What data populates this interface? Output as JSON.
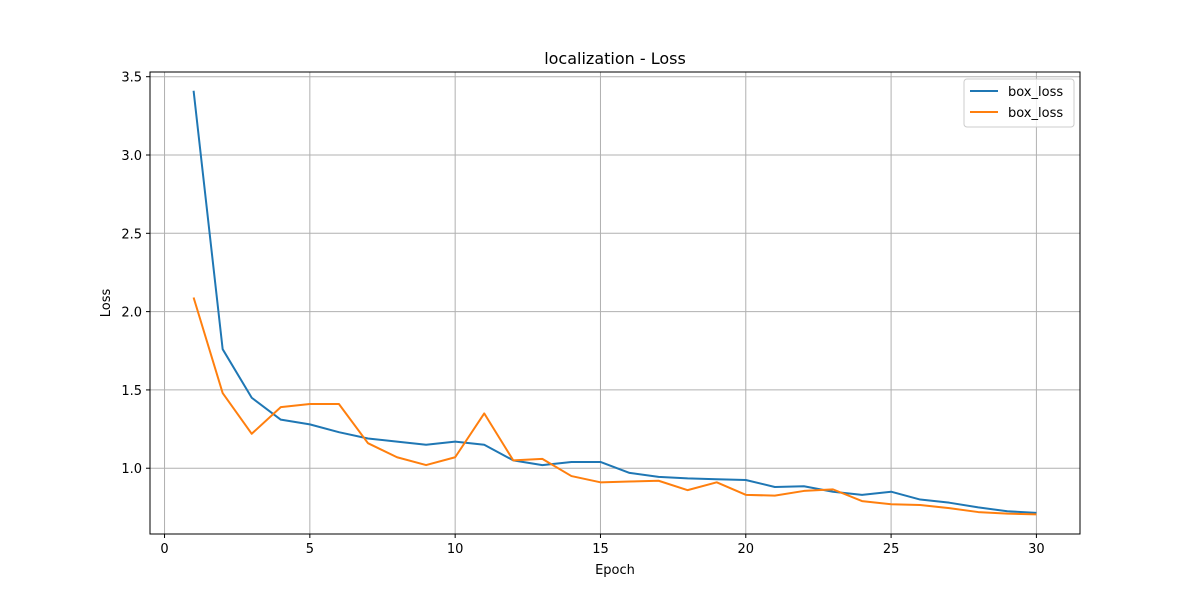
{
  "chart_data": {
    "type": "line",
    "title": "localization - Loss",
    "xlabel": "Epoch",
    "ylabel": "Loss",
    "xlim": [
      -0.5,
      31.5
    ],
    "ylim": [
      0.58,
      3.53
    ],
    "xticks": [
      0,
      5,
      10,
      15,
      20,
      25,
      30
    ],
    "yticks": [
      1.0,
      1.5,
      2.0,
      2.5,
      3.0,
      3.5
    ],
    "ytick_labels": [
      "1.0",
      "1.5",
      "2.0",
      "2.5",
      "3.0",
      "3.5"
    ],
    "grid": true,
    "legend_position": "top-right",
    "x": [
      1,
      2,
      3,
      4,
      5,
      6,
      7,
      8,
      9,
      10,
      11,
      12,
      13,
      14,
      15,
      16,
      17,
      18,
      19,
      20,
      21,
      22,
      23,
      24,
      25,
      26,
      27,
      28,
      29,
      30
    ],
    "series": [
      {
        "name": "box_loss",
        "color": "#1f77b4",
        "values": [
          3.41,
          1.76,
          1.45,
          1.31,
          1.28,
          1.23,
          1.19,
          1.17,
          1.15,
          1.17,
          1.15,
          1.05,
          1.02,
          1.04,
          1.04,
          0.97,
          0.945,
          0.935,
          0.93,
          0.925,
          0.88,
          0.885,
          0.85,
          0.83,
          0.85,
          0.8,
          0.78,
          0.75,
          0.725,
          0.715
        ]
      },
      {
        "name": "box_loss",
        "color": "#ff7f0e",
        "values": [
          2.09,
          1.48,
          1.22,
          1.39,
          1.41,
          1.41,
          1.16,
          1.07,
          1.02,
          1.07,
          1.35,
          1.05,
          1.06,
          0.95,
          0.91,
          0.915,
          0.92,
          0.86,
          0.91,
          0.83,
          0.825,
          0.855,
          0.865,
          0.79,
          0.77,
          0.765,
          0.745,
          0.72,
          0.71,
          0.705
        ]
      }
    ]
  }
}
